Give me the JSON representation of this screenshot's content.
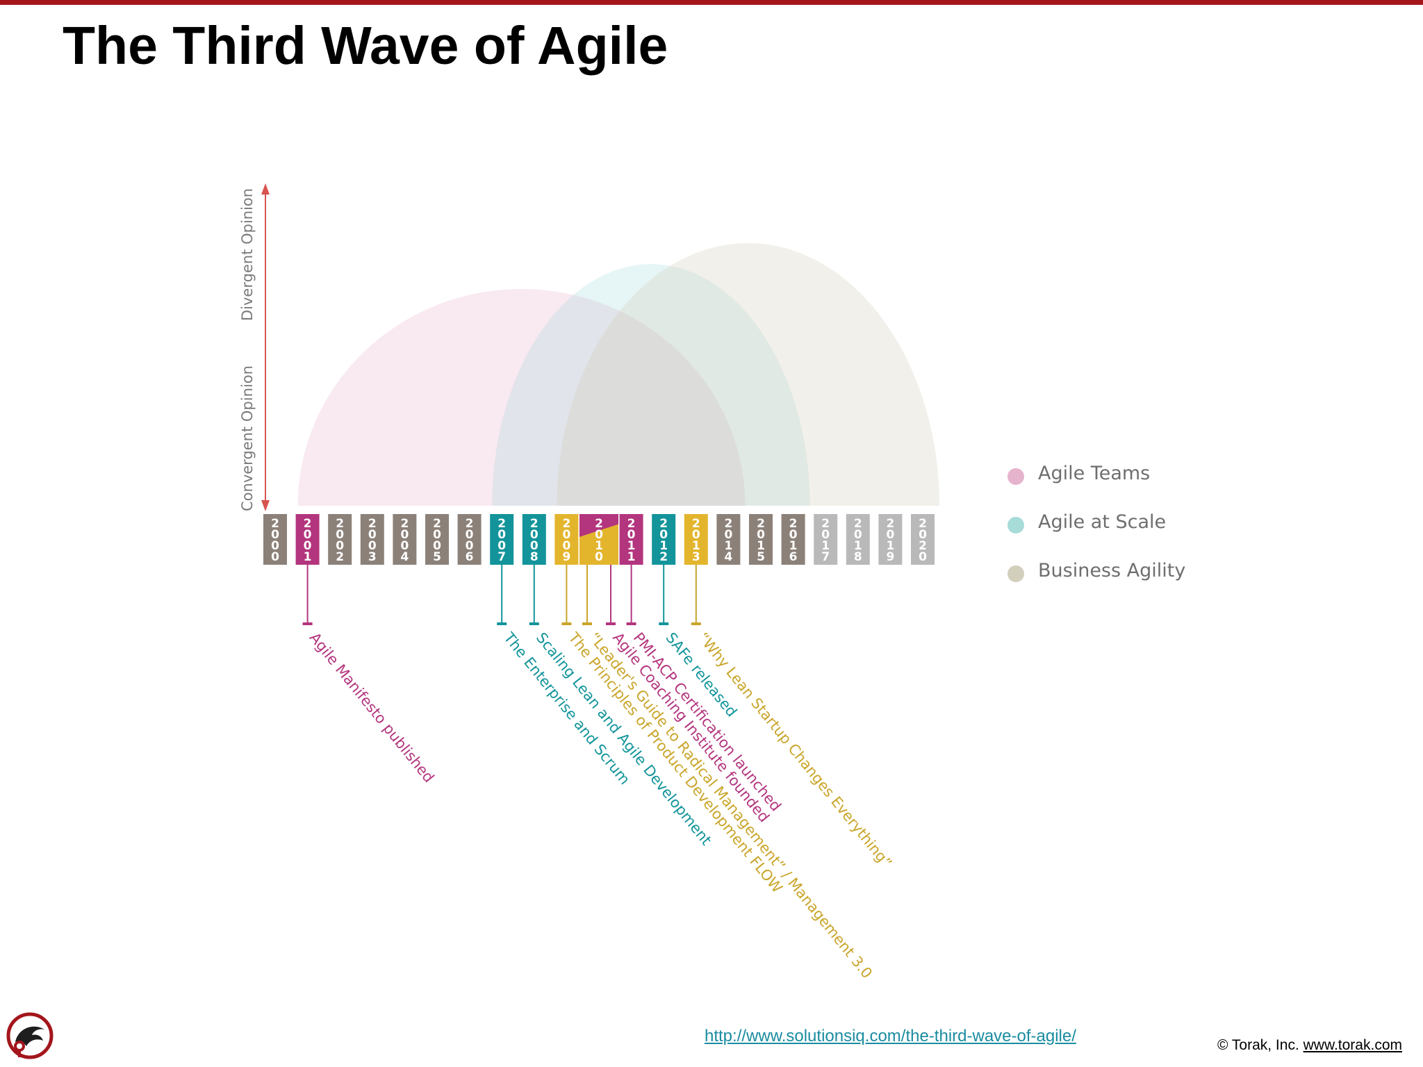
{
  "slide": {
    "title": "The Third Wave of Agile"
  },
  "axis": {
    "divergent_label": "Divergent Opinion",
    "convergent_label": "Convergent Opinion",
    "arrow_color": "#d9534f"
  },
  "waves": [
    {
      "name": "Agile Teams",
      "color": "#e6a9c9",
      "start_year": 2001,
      "end_year": 2014
    },
    {
      "name": "Agile at Scale",
      "color": "#8fd3d1",
      "start_year": 2007,
      "end_year": 2016
    },
    {
      "name": "Business Agility",
      "color": "#cfc8b2",
      "start_year": 2009,
      "end_year": 2020
    }
  ],
  "legend": [
    {
      "label": "Agile Teams",
      "color": "#e6b3cd"
    },
    {
      "label": "Agile at Scale",
      "color": "#a7dcd9"
    },
    {
      "label": "Business Agility",
      "color": "#d3cfbd"
    }
  ],
  "years": [
    {
      "year": "2000",
      "color": "#8c8179"
    },
    {
      "year": "2001",
      "color": "#b3357e"
    },
    {
      "year": "2002",
      "color": "#8c8179"
    },
    {
      "year": "2003",
      "color": "#8c8179"
    },
    {
      "year": "2004",
      "color": "#8c8179"
    },
    {
      "year": "2005",
      "color": "#8c8179"
    },
    {
      "year": "2006",
      "color": "#8c8179"
    },
    {
      "year": "2007",
      "color": "#12949a"
    },
    {
      "year": "2008",
      "color": "#12949a"
    },
    {
      "year": "2009",
      "color": "#e3b52d"
    },
    {
      "year": "2010",
      "color": "#b3357e",
      "split_color": "#e3b52d"
    },
    {
      "year": "2011",
      "color": "#b3357e"
    },
    {
      "year": "2012",
      "color": "#12949a"
    },
    {
      "year": "2013",
      "color": "#e3b52d"
    },
    {
      "year": "2014",
      "color": "#8c8179"
    },
    {
      "year": "2015",
      "color": "#8c8179"
    },
    {
      "year": "2016",
      "color": "#8c8179"
    },
    {
      "year": "2017",
      "color": "#b9b9b9"
    },
    {
      "year": "2018",
      "color": "#b9b9b9"
    },
    {
      "year": "2019",
      "color": "#b9b9b9"
    },
    {
      "year": "2020",
      "color": "#b9b9b9"
    }
  ],
  "events": [
    {
      "text": "Agile Manifesto published",
      "year": 2001,
      "color": "#b3357e"
    },
    {
      "text": "The Enterprise and Scrum",
      "year": 2007,
      "color": "#12949a"
    },
    {
      "text": "Scaling Lean and Agile Development",
      "year": 2008,
      "color": "#12949a"
    },
    {
      "text": "The Principles of Product Development FLOW",
      "year": 2009,
      "color": "#c9a52a"
    },
    {
      "text": "“Leader's Guide to Radical Management” / Management 3.0",
      "year": 2010,
      "color": "#c9a52a"
    },
    {
      "text": "Agile Coaching Institute founded",
      "year": 2010,
      "color": "#b3357e"
    },
    {
      "text": "PMI-ACP Certification launched",
      "year": 2011,
      "color": "#b3357e"
    },
    {
      "text": "SAFe released",
      "year": 2012,
      "color": "#12949a"
    },
    {
      "text": "“Why Lean Startup Changes Everything”",
      "year": 2013,
      "color": "#c9a52a"
    }
  ],
  "footer": {
    "source_link": "http://www.solutionsiq.com/the-third-wave-of-agile/",
    "copyright": "© Torak, Inc.",
    "company_link": "www.torak.com"
  },
  "logo_icon": "torak-logo-icon"
}
